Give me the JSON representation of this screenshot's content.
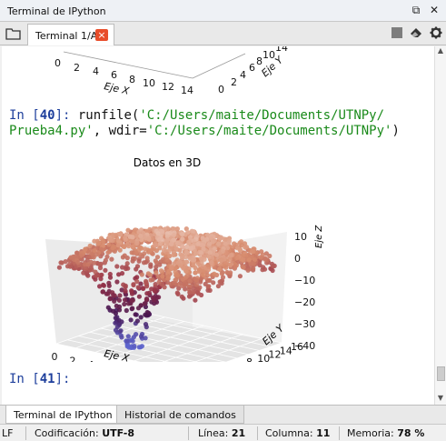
{
  "pane": {
    "title": "Terminal de IPython"
  },
  "tab": {
    "label": "Terminal 1/A",
    "close": "×"
  },
  "top_axes": {
    "x_ticks": [
      "0",
      "2",
      "4",
      "6",
      "8",
      "10",
      "12",
      "14"
    ],
    "x_label": "Eje X",
    "y_ticks": [
      "0",
      "2",
      "4",
      "6",
      "8",
      "10",
      "14"
    ],
    "y_label": "Eje Y"
  },
  "console": {
    "in40_prompt": "In [",
    "in40_num": "40",
    "in40_close": "]: ",
    "in40_code_a": "runfile(",
    "in40_str1": "'C:/Users/maite/Documents/UTNPy/",
    "in40_str2": "Prueba4.py'",
    "in40_code_b": ", wdir=",
    "in40_str3": "'C:/Users/maite/Documents/UTNPy'",
    "in40_code_c": ")",
    "in41_prompt": "In [",
    "in41_num": "41",
    "in41_close": "]:"
  },
  "chart_data": {
    "type": "scatter",
    "title": "Datos en 3D",
    "xlabel": "Eje X",
    "ylabel": "Eje Y",
    "zlabel": "Eje Z",
    "x_ticks": [
      "0",
      "2",
      "4",
      "6",
      "8",
      "10",
      "12",
      "14"
    ],
    "y_ticks": [
      "0",
      "2",
      "4",
      "6",
      "8",
      "10",
      "12",
      "14",
      "16"
    ],
    "z_ticks": [
      "10",
      "0",
      "−10",
      "−20",
      "−30",
      "−40"
    ],
    "xlim": [
      0,
      15
    ],
    "ylim": [
      0,
      16
    ],
    "zlim": [
      -40,
      12
    ],
    "grid": true
  },
  "bottom_tabs": {
    "terminal": "Terminal de IPython",
    "history": "Historial de comandos"
  },
  "status": {
    "eol": "LF",
    "encoding_label": "Codificación:",
    "encoding_value": "UTF-8",
    "line_label": "Línea:",
    "line_value": "21",
    "column_label": "Columna:",
    "column_value": "11",
    "memory_label": "Memoria:",
    "memory_value": "78 %"
  },
  "colors": {
    "prompt": "#1e3f9c",
    "string": "#1a8a1a",
    "close_button": "#e84d2a"
  }
}
